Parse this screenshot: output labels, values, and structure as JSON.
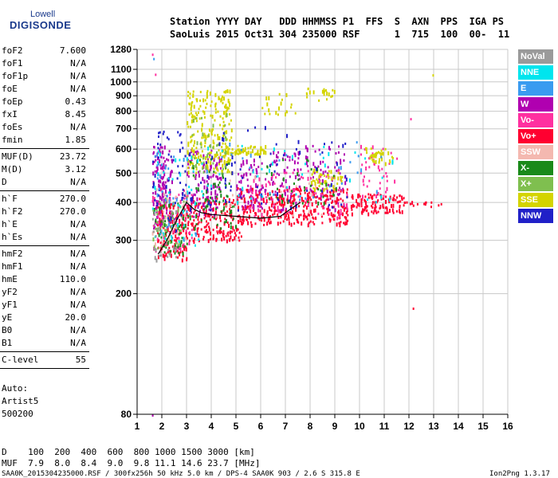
{
  "logo": {
    "top": "Lowell",
    "bottom": "DIGISONDE"
  },
  "header": {
    "line1": "Station YYYY DAY   DDD HHMMSS P1  FFS  S  AXN  PPS  IGA PS",
    "line2": "SaoLuis 2015 Oct31 304 235000 RSF      1  715  100  00-  11"
  },
  "sidebar": [
    {
      "group": [
        {
          "label": "foF2",
          "value": "7.600"
        },
        {
          "label": "foF1",
          "value": "N/A"
        },
        {
          "label": "foF1p",
          "value": "N/A"
        },
        {
          "label": "foE",
          "value": "N/A"
        },
        {
          "label": "foEp",
          "value": "0.43"
        },
        {
          "label": "fxI",
          "value": "8.45"
        },
        {
          "label": "foEs",
          "value": "N/A"
        },
        {
          "label": "fmin",
          "value": "1.85"
        }
      ]
    },
    {
      "group": [
        {
          "label": "MUF(D)",
          "value": "23.72"
        },
        {
          "label": "M(D)",
          "value": "3.12"
        },
        {
          "label": "D",
          "value": "N/A"
        }
      ]
    },
    {
      "group": [
        {
          "label": "h`F",
          "value": "270.0"
        },
        {
          "label": "h`F2",
          "value": "270.0"
        },
        {
          "label": "h`E",
          "value": "N/A"
        },
        {
          "label": "h`Es",
          "value": "N/A"
        }
      ]
    },
    {
      "group": [
        {
          "label": "hmF2",
          "value": "N/A"
        },
        {
          "label": "hmF1",
          "value": "N/A"
        },
        {
          "label": "hmE",
          "value": "110.0"
        },
        {
          "label": "yF2",
          "value": "N/A"
        },
        {
          "label": "yF1",
          "value": "N/A"
        },
        {
          "label": "yE",
          "value": "20.0"
        },
        {
          "label": "B0",
          "value": "N/A"
        },
        {
          "label": "B1",
          "value": "N/A"
        }
      ]
    },
    {
      "group": [
        {
          "label": "C-level",
          "value": "55"
        }
      ]
    }
  ],
  "auto_block": {
    "line1": "Auto:",
    "line2": "Artist5",
    "line3": "500200"
  },
  "legend": [
    {
      "label": "NoVal",
      "color": "#9a9a9a"
    },
    {
      "label": "NNE",
      "color": "#00e5ee"
    },
    {
      "label": "E",
      "color": "#3a9bf0"
    },
    {
      "label": "W",
      "color": "#b000b0"
    },
    {
      "label": "Vo-",
      "color": "#ff30a0"
    },
    {
      "label": "Vo+",
      "color": "#ff0030"
    },
    {
      "label": "SSW",
      "color": "#f4b8b0"
    },
    {
      "label": "X-",
      "color": "#1a8a1a"
    },
    {
      "label": "X+",
      "color": "#7fbf4f"
    },
    {
      "label": "SSE",
      "color": "#d4d400"
    },
    {
      "label": "NNW",
      "color": "#2020c8"
    }
  ],
  "bottom": {
    "d_row": "D    100  200  400  600  800 1000 1500 3000 [km]",
    "muf_row": "MUF  7.9  8.0  8.4  9.0  9.8 11.1 14.6 23.7 [MHz]"
  },
  "footer": {
    "left": "SAA0K_2015304235000.RSF / 300fx256h 50 kHz 5.0 km / DPS-4 SAA0K 903 / 2.6 S 315.8 E",
    "right": "Ion2Png 1.3.17"
  },
  "chart_data": {
    "type": "scatter",
    "title": "",
    "xlabel": "",
    "ylabel": "",
    "xlim": [
      1,
      16
    ],
    "ylim": [
      80,
      1280
    ],
    "y_scale": "log",
    "x_ticks": [
      1,
      2,
      3,
      4,
      5,
      6,
      7,
      8,
      9,
      10,
      11,
      12,
      13,
      14,
      15,
      16
    ],
    "y_ticks": [
      80,
      200,
      300,
      400,
      500,
      600,
      700,
      800,
      900,
      1000,
      1100,
      1280
    ],
    "grid": true,
    "series": [
      {
        "name": "W",
        "color": "#b000b0",
        "clusters": [
          {
            "f": [
              1.6,
              2.4
            ],
            "h": [
              330,
              620
            ],
            "n": 140
          },
          {
            "f": [
              3.0,
              4.4
            ],
            "h": [
              360,
              600
            ],
            "n": 130
          },
          {
            "f": [
              5.0,
              6.2
            ],
            "h": [
              380,
              560
            ],
            "n": 80
          },
          {
            "f": [
              6.4,
              7.6
            ],
            "h": [
              380,
              600
            ],
            "n": 70
          },
          {
            "f": [
              7.8,
              9.4
            ],
            "h": [
              380,
              620
            ],
            "n": 70
          }
        ]
      },
      {
        "name": "Vo+",
        "color": "#ff0030",
        "clusters": [
          {
            "f": [
              1.8,
              3.0
            ],
            "h": [
              260,
              400
            ],
            "n": 140
          },
          {
            "f": [
              3.0,
              5.2
            ],
            "h": [
              300,
              420
            ],
            "n": 170
          },
          {
            "f": [
              5.0,
              9.5
            ],
            "h": [
              340,
              450
            ],
            "n": 320
          },
          {
            "f": [
              9.6,
              11.8
            ],
            "h": [
              370,
              430
            ],
            "n": 110
          },
          {
            "f": [
              11.8,
              13.3
            ],
            "h": [
              390,
              405
            ],
            "n": 14
          }
        ]
      },
      {
        "name": "Vo-",
        "color": "#ff30a0",
        "clusters": [
          {
            "f": [
              1.6,
              3.2
            ],
            "h": [
              280,
              450
            ],
            "n": 70
          },
          {
            "f": [
              5.5,
              9.5
            ],
            "h": [
              360,
              520
            ],
            "n": 90
          },
          {
            "f": [
              10.0,
              11.5
            ],
            "h": [
              420,
              620
            ],
            "n": 40
          }
        ]
      },
      {
        "name": "SSE",
        "color": "#d4d400",
        "clusters": [
          {
            "f": [
              3.0,
              4.8
            ],
            "h": [
              500,
              950
            ],
            "n": 230
          },
          {
            "f": [
              4.5,
              6.2
            ],
            "h": [
              580,
              620
            ],
            "n": 60
          },
          {
            "f": [
              6.0,
              7.5
            ],
            "h": [
              780,
              920
            ],
            "n": 20
          },
          {
            "f": [
              7.8,
              9.0
            ],
            "h": [
              860,
              960
            ],
            "n": 20
          },
          {
            "f": [
              8.0,
              9.3
            ],
            "h": [
              440,
              520
            ],
            "n": 50
          },
          {
            "f": [
              10.2,
              11.4
            ],
            "h": [
              540,
              610
            ],
            "n": 40
          }
        ]
      },
      {
        "name": "X-",
        "color": "#1a8a1a",
        "clusters": [
          {
            "f": [
              1.6,
              3.0
            ],
            "h": [
              270,
              400
            ],
            "n": 60
          },
          {
            "f": [
              3.0,
              5.0
            ],
            "h": [
              330,
              560
            ],
            "n": 70
          },
          {
            "f": [
              6.2,
              9.2
            ],
            "h": [
              400,
              560
            ],
            "n": 40
          }
        ]
      },
      {
        "name": "X+",
        "color": "#7fbf4f",
        "clusters": [
          {
            "f": [
              1.6,
              3.0
            ],
            "h": [
              280,
              420
            ],
            "n": 50
          },
          {
            "f": [
              3.2,
              4.6
            ],
            "h": [
              480,
              800
            ],
            "n": 40
          }
        ]
      },
      {
        "name": "NNW",
        "color": "#2020c8",
        "clusters": [
          {
            "f": [
              1.6,
              3.2
            ],
            "h": [
              320,
              700
            ],
            "n": 60
          },
          {
            "f": [
              3.2,
              9.5
            ],
            "h": [
              380,
              720
            ],
            "n": 70
          }
        ]
      },
      {
        "name": "NNE",
        "color": "#00e5ee",
        "clusters": [
          {
            "f": [
              1.6,
              3.5
            ],
            "h": [
              280,
              600
            ],
            "n": 40
          },
          {
            "f": [
              3.5,
              11.5
            ],
            "h": [
              400,
              620
            ],
            "n": 40
          }
        ]
      },
      {
        "name": "E",
        "color": "#3a9bf0",
        "clusters": [
          {
            "f": [
              1.6,
              3.5
            ],
            "h": [
              300,
              600
            ],
            "n": 30
          },
          {
            "f": [
              3.5,
              11.0
            ],
            "h": [
              400,
              640
            ],
            "n": 30
          }
        ]
      },
      {
        "name": "SSW",
        "color": "#f4b8b0",
        "clusters": [
          {
            "f": [
              1.6,
              3.0
            ],
            "h": [
              280,
              450
            ],
            "n": 20
          },
          {
            "f": [
              4.0,
              9.0
            ],
            "h": [
              350,
              500
            ],
            "n": 20
          }
        ]
      },
      {
        "name": "NoVal",
        "color": "#9a9a9a",
        "clusters": [
          {
            "f": [
              1.6,
              2.6
            ],
            "h": [
              260,
              380
            ],
            "n": 30
          }
        ]
      }
    ],
    "profile_curve": {
      "color": "#000000",
      "points": [
        [
          1.85,
          270
        ],
        [
          2.2,
          300
        ],
        [
          2.6,
          350
        ],
        [
          3.0,
          400
        ],
        [
          3.3,
          380
        ],
        [
          3.6,
          370
        ],
        [
          4.0,
          365
        ],
        [
          5.0,
          360
        ],
        [
          6.0,
          355
        ],
        [
          6.8,
          360
        ],
        [
          7.2,
          380
        ],
        [
          7.6,
          400
        ]
      ]
    },
    "outliers": [
      {
        "f": 1.6,
        "h": 1240,
        "color": "#ff30a0"
      },
      {
        "f": 1.65,
        "h": 1200,
        "color": "#3a9bf0"
      },
      {
        "f": 1.72,
        "h": 1065,
        "color": "#ff30a0"
      },
      {
        "f": 1.6,
        "h": 80,
        "color": "#b000b0"
      },
      {
        "f": 12.95,
        "h": 1060,
        "color": "#d4d400"
      },
      {
        "f": 12.15,
        "h": 180,
        "color": "#ff0030"
      },
      {
        "f": 12.05,
        "h": 760,
        "color": "#ff30a0"
      }
    ]
  }
}
